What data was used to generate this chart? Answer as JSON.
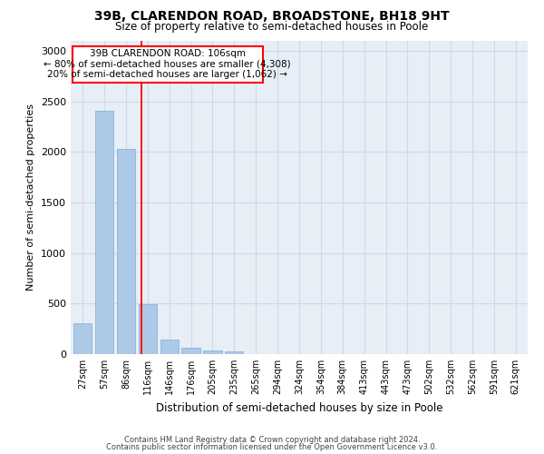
{
  "title": "39B, CLARENDON ROAD, BROADSTONE, BH18 9HT",
  "subtitle": "Size of property relative to semi-detached houses in Poole",
  "xlabel": "Distribution of semi-detached houses by size in Poole",
  "ylabel": "Number of semi-detached properties",
  "footer_line1": "Contains HM Land Registry data © Crown copyright and database right 2024.",
  "footer_line2": "Contains public sector information licensed under the Open Government Licence v3.0.",
  "categories": [
    "27sqm",
    "57sqm",
    "86sqm",
    "116sqm",
    "146sqm",
    "176sqm",
    "205sqm",
    "235sqm",
    "265sqm",
    "294sqm",
    "324sqm",
    "354sqm",
    "384sqm",
    "413sqm",
    "443sqm",
    "473sqm",
    "502sqm",
    "532sqm",
    "562sqm",
    "591sqm",
    "621sqm"
  ],
  "values": [
    310,
    2410,
    2030,
    495,
    145,
    65,
    40,
    30,
    0,
    0,
    0,
    0,
    0,
    0,
    0,
    0,
    0,
    0,
    0,
    0,
    0
  ],
  "bar_color": "#adc9e8",
  "bar_edge_color": "#7aadd4",
  "ylim": [
    0,
    3100
  ],
  "yticks": [
    0,
    500,
    1000,
    1500,
    2000,
    2500,
    3000
  ],
  "property_line_x": 2.73,
  "annotation_title": "39B CLARENDON ROAD: 106sqm",
  "annotation_line1": "← 80% of semi-detached houses are smaller (4,308)",
  "annotation_line2": "20% of semi-detached houses are larger (1,062) →",
  "grid_color": "#ced8ea",
  "bg_color": "#e8eef6"
}
